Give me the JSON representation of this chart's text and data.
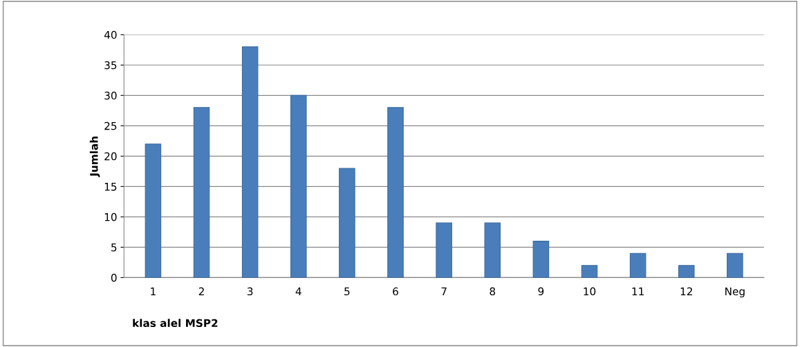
{
  "chart_data": {
    "type": "bar",
    "xlabel": "klas alel MSP2",
    "ylabel": "Jumlah",
    "categories": [
      "1",
      "2",
      "3",
      "4",
      "5",
      "6",
      "7",
      "8",
      "9",
      "10",
      "11",
      "12",
      "Neg"
    ],
    "values": [
      22,
      28,
      38,
      30,
      18,
      28,
      9,
      9,
      6,
      2,
      4,
      2,
      4
    ],
    "color": "#4a7ebb",
    "ylim": [
      0,
      40
    ],
    "yticks": [
      0,
      5,
      10,
      15,
      20,
      25,
      30,
      35,
      40
    ],
    "grid": "y"
  }
}
